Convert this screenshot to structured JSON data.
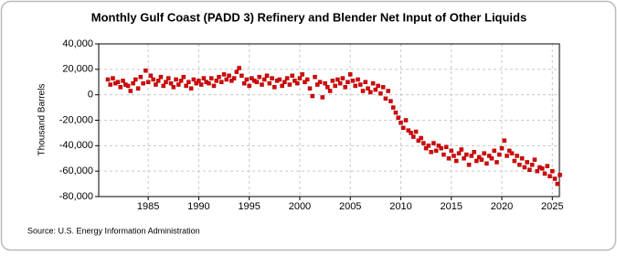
{
  "chart_data": {
    "type": "scatter",
    "title": "Monthly Gulf Coast (PADD 3) Refinery and Blender Net Input of Other Liquids",
    "y_label": "Thousand Barrels",
    "source": "Source: U.S. Energy Information Administration",
    "color": "#dd0000",
    "grid": true,
    "xlim": [
      1980.1,
      2025.7
    ],
    "xticks": [
      1985,
      1990,
      1995,
      2000,
      2005,
      2010,
      2015,
      2020,
      2025
    ],
    "ylim": [
      -80000,
      40000
    ],
    "yticks": [
      {
        "value": -80000,
        "label": "-80,000"
      },
      {
        "value": -60000,
        "label": "-60,000"
      },
      {
        "value": -40000,
        "label": "-40,000"
      },
      {
        "value": -20000,
        "label": "-20,000"
      },
      0,
      {
        "value": 20000,
        "label": "20,000"
      },
      {
        "value": 40000,
        "label": "40,000"
      }
    ],
    "x": [
      1981,
      1981.25,
      1981.5,
      1981.75,
      1982,
      1982.25,
      1982.5,
      1982.75,
      1983,
      1983.25,
      1983.5,
      1983.75,
      1984,
      1984.25,
      1984.5,
      1984.75,
      1985,
      1985.25,
      1985.5,
      1985.75,
      1986,
      1986.25,
      1986.5,
      1986.75,
      1987,
      1987.25,
      1987.5,
      1987.75,
      1988,
      1988.25,
      1988.5,
      1988.75,
      1989,
      1989.25,
      1989.5,
      1989.75,
      1990,
      1990.25,
      1990.5,
      1990.75,
      1991,
      1991.25,
      1991.5,
      1991.75,
      1992,
      1992.25,
      1992.5,
      1992.75,
      1993,
      1993.25,
      1993.5,
      1993.75,
      1994,
      1994.25,
      1994.5,
      1994.75,
      1995,
      1995.25,
      1995.5,
      1995.75,
      1996,
      1996.25,
      1996.5,
      1996.75,
      1997,
      1997.25,
      1997.5,
      1997.75,
      1998,
      1998.25,
      1998.5,
      1998.75,
      1999,
      1999.25,
      1999.5,
      1999.75,
      2000,
      2000.25,
      2000.5,
      2000.75,
      2001,
      2001.25,
      2001.5,
      2001.75,
      2002,
      2002.25,
      2002.5,
      2002.75,
      2003,
      2003.25,
      2003.5,
      2003.75,
      2004,
      2004.25,
      2004.5,
      2004.75,
      2005,
      2005.25,
      2005.5,
      2005.75,
      2006,
      2006.25,
      2006.5,
      2006.75,
      2007,
      2007.25,
      2007.5,
      2007.75,
      2008,
      2008.25,
      2008.5,
      2008.75,
      2009,
      2009.25,
      2009.5,
      2009.75,
      2010,
      2010.25,
      2010.5,
      2010.75,
      2011,
      2011.25,
      2011.5,
      2011.75,
      2012,
      2012.25,
      2012.5,
      2012.75,
      2013,
      2013.25,
      2013.5,
      2013.75,
      2014,
      2014.25,
      2014.5,
      2014.75,
      2015,
      2015.25,
      2015.5,
      2015.75,
      2016,
      2016.25,
      2016.5,
      2016.75,
      2017,
      2017.25,
      2017.5,
      2017.75,
      2018,
      2018.25,
      2018.5,
      2018.75,
      2019,
      2019.25,
      2019.5,
      2019.75,
      2020,
      2020.25,
      2020.5,
      2020.75,
      2021,
      2021.25,
      2021.5,
      2021.75,
      2022,
      2022.25,
      2022.5,
      2022.75,
      2023,
      2023.25,
      2023.5,
      2023.75,
      2024,
      2024.25,
      2024.5,
      2024.75,
      2025,
      2025.25,
      2025.5,
      2025.75
    ],
    "values": [
      12000,
      8000,
      13000,
      9000,
      10000,
      6000,
      11000,
      8000,
      7000,
      3000,
      9000,
      12000,
      5000,
      14000,
      9000,
      19000,
      10000,
      15000,
      12000,
      8000,
      11000,
      14000,
      7000,
      10000,
      13000,
      9000,
      6000,
      12000,
      8000,
      11000,
      14000,
      7000,
      10000,
      5000,
      12000,
      9000,
      11000,
      8000,
      13000,
      10000,
      9000,
      13000,
      7000,
      11000,
      14000,
      10000,
      16000,
      12000,
      15000,
      11000,
      13000,
      18000,
      21000,
      15000,
      9000,
      12000,
      7000,
      13000,
      11000,
      10000,
      14000,
      8000,
      12000,
      15000,
      9000,
      13000,
      6000,
      11000,
      12000,
      7000,
      10000,
      13000,
      8000,
      15000,
      11000,
      9000,
      13000,
      16000,
      10000,
      12000,
      5000,
      -1000,
      14000,
      8000,
      10000,
      -2000,
      9000,
      6000,
      3000,
      11000,
      7000,
      12000,
      9000,
      13000,
      6000,
      10000,
      16000,
      11000,
      7000,
      12000,
      8000,
      3000,
      10000,
      5000,
      2000,
      9000,
      4000,
      7000,
      1000,
      6000,
      -3000,
      3000,
      -5000,
      -10000,
      -14000,
      -18000,
      -22000,
      -26000,
      -20000,
      -28000,
      -30000,
      -33000,
      -29000,
      -36000,
      -34000,
      -38000,
      -42000,
      -40000,
      -45000,
      -38000,
      -44000,
      -40000,
      -42000,
      -47000,
      -41000,
      -50000,
      -44000,
      -48000,
      -52000,
      -46000,
      -43000,
      -50000,
      -47000,
      -55000,
      -48000,
      -45000,
      -52000,
      -49000,
      -51000,
      -46000,
      -54000,
      -48000,
      -50000,
      -44000,
      -53000,
      -47000,
      -42000,
      -36000,
      -48000,
      -44000,
      -46000,
      -52000,
      -48000,
      -55000,
      -50000,
      -57000,
      -53000,
      -59000,
      -55000,
      -51000,
      -60000,
      -57000,
      -58000,
      -62000,
      -56000,
      -64000,
      -60000,
      -66000,
      -70000,
      -63000
    ]
  }
}
